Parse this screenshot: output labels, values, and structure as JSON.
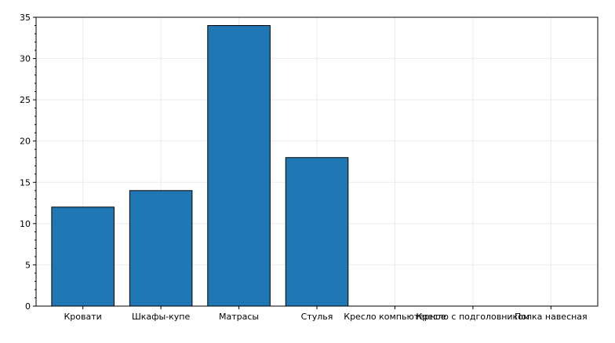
{
  "chart_data": {
    "type": "bar",
    "categories": [
      "Кровати",
      "Шкафы-купе",
      "Матрасы",
      "Стулья",
      "Кресло компьютерное",
      "Кресло с подголовником",
      "Полка навесная"
    ],
    "values": [
      12,
      14,
      34,
      18,
      0,
      0,
      0
    ],
    "title": "",
    "xlabel": "",
    "ylabel": "",
    "ylim": [
      0,
      35
    ],
    "yticks": [
      0,
      5,
      10,
      15,
      20,
      25,
      30,
      35
    ],
    "grid": true,
    "legend": "none",
    "bar_color": "#1f77b4",
    "bar_edge_color": "#000000"
  }
}
